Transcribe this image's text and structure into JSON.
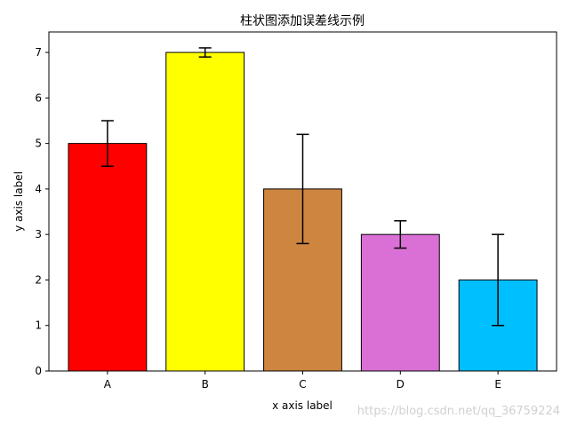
{
  "chart_data": {
    "type": "bar",
    "title": "柱状图添加误差线示例",
    "xlabel": "x axis label",
    "ylabel": "y axis label",
    "categories": [
      "A",
      "B",
      "C",
      "D",
      "E"
    ],
    "values": [
      5,
      7,
      4,
      3,
      2
    ],
    "errors": [
      0.5,
      0.1,
      1.2,
      0.3,
      1.0
    ],
    "colors": [
      "#ff0000",
      "#ffff00",
      "#cd853f",
      "#da70d6",
      "#00bfff"
    ],
    "edge_color": "#000000",
    "ylim": [
      0,
      7.45
    ],
    "yticks": [
      0,
      1,
      2,
      3,
      4,
      5,
      6,
      7
    ],
    "grid": false,
    "legend": "none"
  },
  "watermark": "https://blog.csdn.net/qq_36759224"
}
